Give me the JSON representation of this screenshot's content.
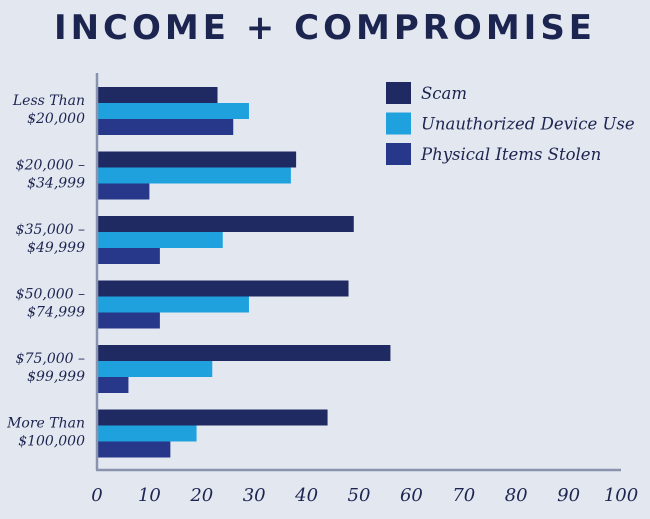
{
  "chart_data": {
    "type": "bar",
    "orientation": "horizontal",
    "title": "INCOME + COMPROMISE",
    "categories": [
      [
        "Less Than",
        "$20,000"
      ],
      [
        "$20,000 –",
        "$34,999"
      ],
      [
        "$35,000 –",
        "$49,999"
      ],
      [
        "$50,000 –",
        "$74,999"
      ],
      [
        "$75,000 –",
        "$99,999"
      ],
      [
        "More Than",
        "$100,000"
      ]
    ],
    "series": [
      {
        "name": "Scam",
        "color": "#1f2a63",
        "values": [
          23,
          38,
          49,
          48,
          56,
          44
        ]
      },
      {
        "name": "Unauthorized Device Use",
        "color": "#1fa1dd",
        "values": [
          29,
          37,
          24,
          29,
          22,
          19
        ]
      },
      {
        "name": "Physical Items Stolen",
        "color": "#27378a",
        "values": [
          26,
          10,
          12,
          12,
          6,
          14
        ]
      }
    ],
    "xlim": [
      0,
      100
    ],
    "xticks": [
      0,
      10,
      20,
      30,
      40,
      50,
      60,
      70,
      80,
      90,
      100
    ],
    "xlabel": "",
    "ylabel": "",
    "grid": false,
    "legend_position": "top-right",
    "axis_color": "#8a93ad",
    "text_color": "#1c2450"
  }
}
